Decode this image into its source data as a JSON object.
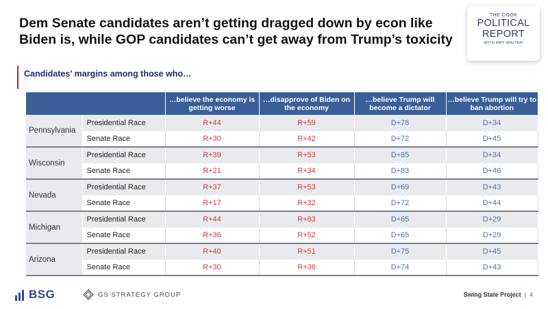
{
  "title": {
    "line1": "Dem Senate candidates aren’t getting dragged down by econ like",
    "line2": "Biden is, while GOP candidates can’t get away from Trump’s toxicity"
  },
  "logo": {
    "the": "THE COOK",
    "line1": "POLITICAL",
    "line2": "REPORT",
    "with": "WITH AMY WALTER"
  },
  "subtitle": "Candidates’ margins among those who…",
  "table": {
    "columns": [
      "…believe the economy is getting worse",
      "…disapprove of Biden on the economy",
      "…believe Trump will become a dictator",
      "…believe Trump will try to ban abortion"
    ],
    "states": [
      {
        "name": "Pennsylvania",
        "rows": [
          {
            "race": "Presidential Race",
            "values": [
              "R+44",
              "R+59",
              "D+78",
              "D+34"
            ]
          },
          {
            "race": "Senate Race",
            "values": [
              "R+30",
              "R+42",
              "D+72",
              "D+45"
            ]
          }
        ]
      },
      {
        "name": "Wisconsin",
        "rows": [
          {
            "race": "Presidential Race",
            "values": [
              "R+39",
              "R+53",
              "D+85",
              "D+34"
            ]
          },
          {
            "race": "Senate Race",
            "values": [
              "R+21",
              "R+34",
              "D+83",
              "D+46"
            ]
          }
        ]
      },
      {
        "name": "Nevada",
        "rows": [
          {
            "race": "Presidential Race",
            "values": [
              "R+37",
              "R+53",
              "D+69",
              "D+43"
            ]
          },
          {
            "race": "Senate Race",
            "values": [
              "R+17",
              "R+32",
              "D+72",
              "D+44"
            ]
          }
        ]
      },
      {
        "name": "Michigan",
        "rows": [
          {
            "race": "Presidential Race",
            "values": [
              "R+44",
              "R+63",
              "D+65",
              "D+29"
            ]
          },
          {
            "race": "Senate Race",
            "values": [
              "R+36",
              "R+52",
              "D+65",
              "D+29"
            ]
          }
        ]
      },
      {
        "name": "Arizona",
        "rows": [
          {
            "race": "Presidential Race",
            "values": [
              "R+40",
              "R+51",
              "D+75",
              "D+45"
            ]
          },
          {
            "race": "Senate Race",
            "values": [
              "R+30",
              "R+36",
              "D+74",
              "D+43"
            ]
          }
        ]
      }
    ]
  },
  "colors": {
    "header_bg": "#3a5f98",
    "republican": "#d03a3a",
    "democrat": "#4b70b6",
    "accent_red": "#c0202b",
    "navy": "#1f2e6d"
  },
  "footer": {
    "bsg": "BSG",
    "gs": "GS STRATEGY GROUP",
    "project": "Swing State Project",
    "page": "4"
  }
}
